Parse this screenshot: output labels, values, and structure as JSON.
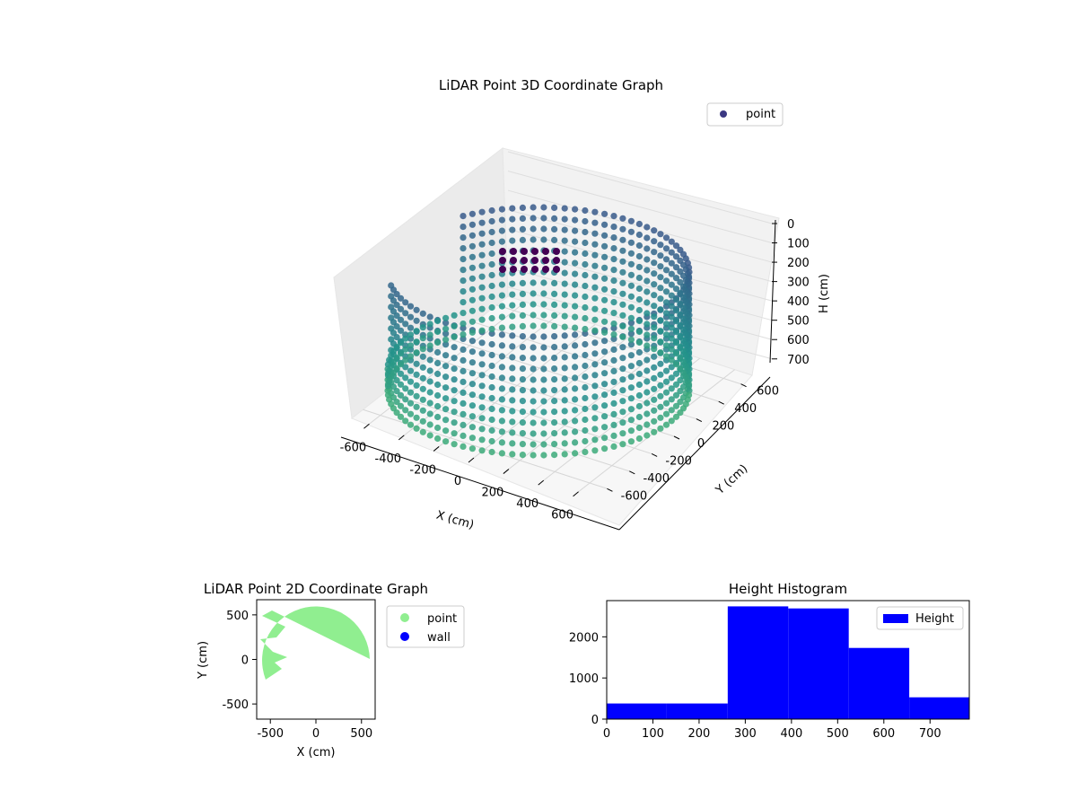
{
  "chart_data": [
    {
      "type": "scatter3d",
      "title": "LiDAR Point 3D Coordinate Graph",
      "xlabel": "X (cm)",
      "ylabel": "Y (cm)",
      "zlabel": "H (cm)",
      "xticks": [
        "-600",
        "-400",
        "-200",
        "0",
        "200",
        "400",
        "600"
      ],
      "yticks": [
        "-600",
        "-400",
        "-200",
        "0",
        "200",
        "400",
        "600"
      ],
      "zticks": [
        "0",
        "100",
        "200",
        "300",
        "400",
        "500",
        "600",
        "700"
      ],
      "xlim": [
        -700,
        700
      ],
      "ylim": [
        -700,
        700
      ],
      "zlim": [
        0,
        780
      ],
      "z_axis_inverted": true,
      "legend": {
        "position": "top-right",
        "entries": [
          {
            "label": "point",
            "color": "#3b3882"
          }
        ]
      },
      "colormap": "viridis",
      "description_shape": "cylindrical wall of radius ~600 with a gap on the -X side",
      "grid": true
    },
    {
      "type": "scatter",
      "title": "LiDAR Point 2D Coordinate Graph",
      "xlabel": "X (cm)",
      "ylabel": "Y (cm)",
      "xticks": [
        "-500",
        "0",
        "500"
      ],
      "yticks": [
        "500",
        "0",
        "-500"
      ],
      "xlim": [
        -650,
        650
      ],
      "ylim": [
        -670,
        670
      ],
      "legend": {
        "position": "outside-right",
        "entries": [
          {
            "label": "point",
            "color": "#90ee90"
          },
          {
            "label": "wall",
            "color": "#0000ff"
          }
        ]
      },
      "radius": 600
    },
    {
      "type": "bar",
      "title": "Height Histogram",
      "xticks": [
        "0",
        "100",
        "200",
        "300",
        "400",
        "500",
        "600",
        "700"
      ],
      "yticks": [
        "0",
        "1000",
        "2000"
      ],
      "xlim": [
        0,
        785
      ],
      "ylim": [
        0,
        2880
      ],
      "series": [
        {
          "name": "Height",
          "color": "#0000ff",
          "bins": [
            {
              "x0": 0,
              "x1": 130,
              "value": 380
            },
            {
              "x0": 130,
              "x1": 262,
              "value": 380
            },
            {
              "x0": 262,
              "x1": 393,
              "value": 2740
            },
            {
              "x0": 393,
              "x1": 524,
              "value": 2690
            },
            {
              "x0": 524,
              "x1": 655,
              "value": 1730
            },
            {
              "x0": 655,
              "x1": 785,
              "value": 530
            }
          ]
        }
      ],
      "legend": {
        "position": "top-right",
        "entries": [
          {
            "label": "Height",
            "color": "#0000ff"
          }
        ]
      }
    }
  ]
}
